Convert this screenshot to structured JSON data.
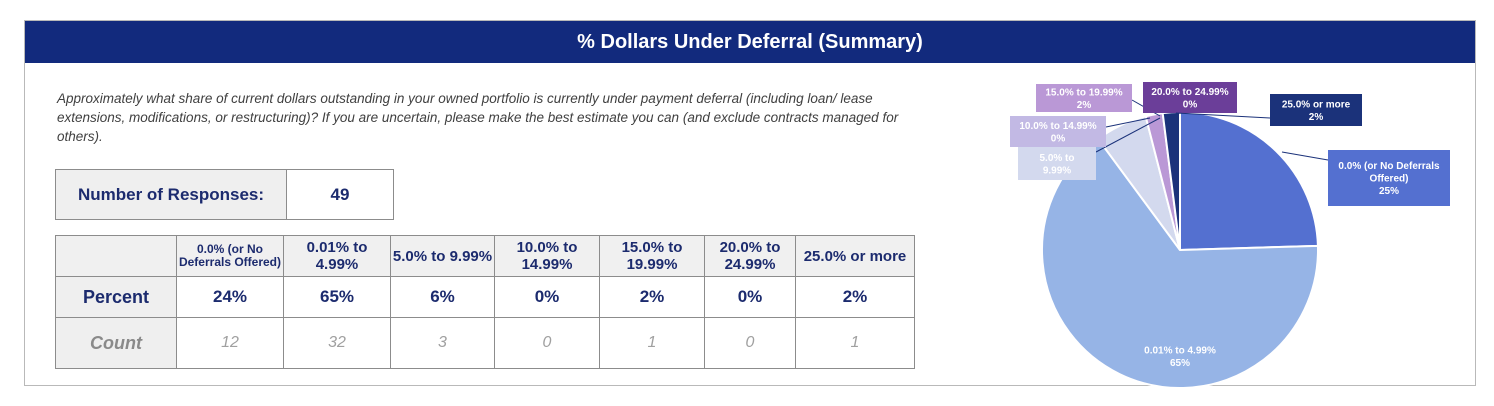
{
  "title": "% Dollars Under Deferral (Summary)",
  "question": "Approximately what share of current dollars outstanding in your owned portfolio is currently under payment deferral (including loan/ lease extensions, modifications, or restructuring)? If you are uncertain, please make the best estimate you can (and exclude contracts managed for others).",
  "responses": {
    "label": "Number of Responses:",
    "value": "49"
  },
  "table": {
    "categories": [
      "0.0% (or No Deferrals Offered)",
      "0.01% to 4.99%",
      "5.0% to 9.99%",
      "10.0% to 14.99%",
      "15.0% to 19.99%",
      "20.0% to 24.99%",
      "25.0% or more"
    ],
    "percent_label": "Percent",
    "percents": [
      "24%",
      "65%",
      "6%",
      "0%",
      "2%",
      "0%",
      "2%"
    ],
    "count_label": "Count",
    "counts": [
      "12",
      "32",
      "3",
      "0",
      "1",
      "0",
      "1"
    ]
  },
  "chart_data": {
    "type": "pie",
    "slices": [
      {
        "label": "0.0% (or No Deferrals Offered)",
        "value": 24.5,
        "display": "25%",
        "color": "#5470d0",
        "text_color": "#ffffff"
      },
      {
        "label": "0.01% to 4.99%",
        "value": 65.3,
        "display": "65%",
        "color": "#96b4e6",
        "text_color": "#ffffff"
      },
      {
        "label": "5.0% to 9.99%",
        "value": 6.1,
        "display": "6%",
        "color": "#d3d9ee",
        "text_color": "#ffffff"
      },
      {
        "label": "10.0% to 14.99%",
        "value": 0.0,
        "display": "0%",
        "color": "#c2b9e4",
        "text_color": "#ffffff"
      },
      {
        "label": "15.0% to 19.99%",
        "value": 2.0,
        "display": "2%",
        "color": "#ba98d6",
        "text_color": "#ffffff"
      },
      {
        "label": "20.0% to 24.99%",
        "value": 0.0,
        "display": "0%",
        "color": "#6b3e99",
        "text_color": "#ffffff"
      },
      {
        "label": "25.0% or more",
        "value": 2.0,
        "display": "2%",
        "color": "#1b327a",
        "text_color": "#ffffff"
      }
    ],
    "visible_labels": [
      {
        "lines": [
          "0.0% (or No Deferrals",
          "Offered)",
          "25%"
        ]
      },
      {
        "lines": [
          "0.01% to 4.99%",
          "65%"
        ]
      },
      {
        "lines": [
          "5.0% to",
          "9.99%"
        ]
      },
      {
        "lines": [
          "10.0% to 14.99%",
          "0%"
        ]
      },
      {
        "lines": [
          "15.0% to 19.99%",
          "2%"
        ]
      },
      {
        "lines": [
          "20.0% to 24.99%",
          "0%"
        ]
      },
      {
        "lines": [
          "25.0% or more",
          "2%"
        ]
      }
    ]
  }
}
